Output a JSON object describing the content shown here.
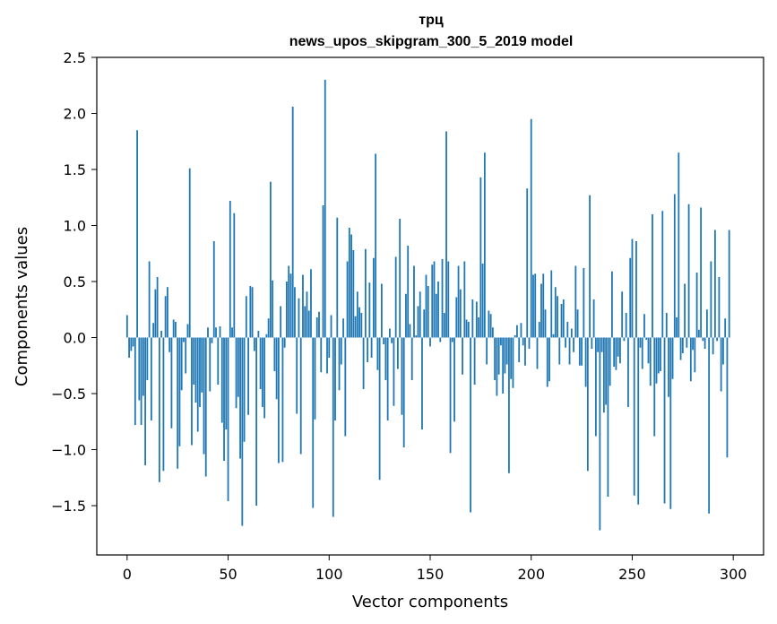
{
  "chart_data": {
    "type": "bar",
    "title": "трц",
    "subtitle": "news_upos_skipgram_300_5_2019 model",
    "xlabel": "Vector components",
    "ylabel": "Components values",
    "xlim": [
      -15,
      315
    ],
    "ylim": [
      -1.94,
      2.5
    ],
    "xticks": [
      0,
      50,
      100,
      150,
      200,
      250,
      300
    ],
    "xtick_labels": [
      "0",
      "50",
      "100",
      "150",
      "200",
      "250",
      "300"
    ],
    "yticks": [
      -1.5,
      -1.0,
      -0.5,
      0.0,
      0.5,
      1.0,
      1.5,
      2.0,
      2.5
    ],
    "ytick_labels": [
      "−1.5",
      "−1.0",
      "−0.5",
      "0.0",
      "0.5",
      "1.0",
      "1.5",
      "2.0",
      "2.5"
    ],
    "grid": false,
    "bar_color": "#1f77b4",
    "values": [
      0.2,
      -0.18,
      -0.12,
      -0.08,
      -0.78,
      1.85,
      -0.56,
      -0.78,
      -0.52,
      -1.14,
      -0.38,
      0.68,
      -0.74,
      0.13,
      0.43,
      0.54,
      -1.29,
      0.06,
      -1.19,
      0.37,
      0.45,
      -0.13,
      -0.81,
      0.16,
      0.14,
      -1.17,
      -0.97,
      -0.47,
      -0.04,
      -0.32,
      0.12,
      1.51,
      -0.96,
      -0.42,
      -0.58,
      -0.84,
      -0.62,
      -0.49,
      -1.04,
      -1.24,
      0.09,
      -0.48,
      -0.05,
      0.86,
      0.09,
      -0.42,
      0.1,
      -0.76,
      -1.1,
      -0.82,
      -1.46,
      1.22,
      0.09,
      1.11,
      -0.63,
      -0.53,
      -1.08,
      -1.68,
      -0.93,
      0.37,
      -0.69,
      0.46,
      0.45,
      -0.12,
      -1.5,
      0.06,
      -0.46,
      -0.62,
      -0.72,
      0.03,
      0.17,
      1.39,
      0.51,
      -0.3,
      -0.55,
      -1.12,
      0.28,
      -1.11,
      -0.09,
      0.5,
      0.64,
      0.57,
      2.06,
      0.45,
      -0.68,
      0.35,
      -1.04,
      0.56,
      0.28,
      0.41,
      0.24,
      0.61,
      -1.52,
      -0.73,
      0.18,
      0.23,
      -0.31,
      1.18,
      2.3,
      -0.32,
      -0.18,
      0.2,
      -1.6,
      -0.74,
      1.07,
      -0.47,
      -0.24,
      0.17,
      -0.88,
      0.68,
      0.98,
      0.92,
      0.78,
      0.19,
      0.41,
      0.27,
      0.22,
      -0.46,
      0.79,
      -0.22,
      0.49,
      -0.18,
      0.71,
      1.64,
      -0.29,
      -1.27,
      0.48,
      -0.06,
      -0.38,
      -0.74,
      0.08,
      -0.05,
      -0.61,
      0.72,
      -0.28,
      1.06,
      -0.69,
      -0.98,
      0.39,
      0.82,
      0.12,
      -0.38,
      0.64,
      0.02,
      0.28,
      0.41,
      -0.82,
      0.25,
      0.56,
      0.46,
      -0.08,
      0.65,
      0.68,
      0.39,
      0.5,
      -0.04,
      0.7,
      0.22,
      1.84,
      0.68,
      -1.03,
      -0.04,
      -0.75,
      0.36,
      0.64,
      0.43,
      -0.33,
      0.68,
      0.16,
      0.14,
      -1.56,
      0.34,
      -0.42,
      0.32,
      0.18,
      1.43,
      0.66,
      1.65,
      -0.24,
      0.24,
      0.21,
      0.09,
      -0.38,
      -0.52,
      -0.33,
      -0.07,
      -0.5,
      -0.32,
      -0.24,
      -1.21,
      -0.37,
      -0.45,
      0.02,
      0.11,
      -0.22,
      0.13,
      -0.07,
      -0.25,
      1.33,
      -0.1,
      1.95,
      0.56,
      0.57,
      -0.28,
      0.14,
      0.48,
      0.57,
      0.25,
      -0.44,
      -0.39,
      0.6,
      0.03,
      0.45,
      0.37,
      -0.24,
      0.3,
      0.34,
      -0.09,
      0.14,
      -0.24,
      0.08,
      -0.13,
      0.64,
      0.25,
      -0.25,
      -0.25,
      0.62,
      -0.44,
      -1.19,
      1.27,
      -0.1,
      0.34,
      -0.88,
      -0.13,
      -1.72,
      -0.13,
      -0.67,
      -0.6,
      -1.42,
      -0.43,
      0.59,
      -0.26,
      -0.29,
      -0.17,
      -0.23,
      0.41,
      -0.03,
      0.22,
      -0.62,
      0.71,
      0.88,
      -1.41,
      0.86,
      -1.49,
      -0.09,
      -0.28,
      0.21,
      -0.02,
      -0.23,
      -0.43,
      1.1,
      -0.88,
      -0.41,
      -0.32,
      -0.3,
      1.13,
      -1.48,
      0.22,
      -0.53,
      -1.53,
      -0.37,
      1.28,
      0.18,
      1.65,
      -0.2,
      -0.14,
      0.48,
      -0.09,
      1.19,
      -0.39,
      -0.11,
      -0.31,
      0.58,
      0.07,
      1.16,
      -0.03,
      -0.1,
      0.25,
      -1.57,
      0.68,
      -0.15,
      0.96,
      -0.03,
      0.54,
      -0.48,
      -0.24,
      0.17,
      -1.07,
      0.96
    ]
  }
}
